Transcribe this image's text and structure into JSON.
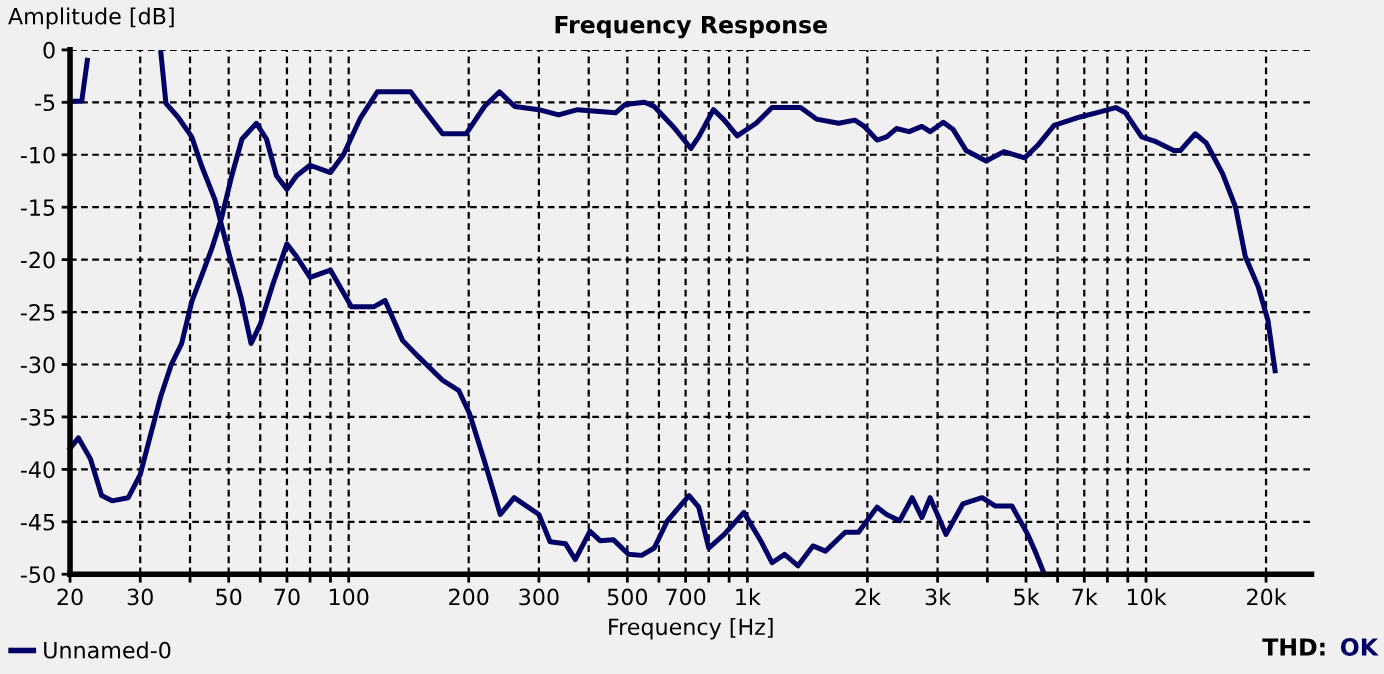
{
  "chart_data": {
    "type": "line",
    "title": "Frequency Response",
    "xlabel": "Frequency [Hz]",
    "ylabel": "Amplitude [dB]",
    "log": "x",
    "grid": true,
    "legend": "bottom left",
    "line_style": "solid",
    "marker": "none",
    "xlim": [
      20,
      26000
    ],
    "ylim": [
      -50,
      0
    ],
    "xticks": [
      20,
      30,
      {
        "value": 40,
        "label": null
      },
      50,
      {
        "value": 60,
        "label": null
      },
      70,
      {
        "value": 80,
        "label": null
      },
      {
        "value": 90,
        "label": null
      },
      100,
      200,
      300,
      {
        "value": 400,
        "label": null
      },
      500,
      {
        "value": 600,
        "label": null
      },
      700,
      {
        "value": 800,
        "label": null
      },
      {
        "value": 900,
        "label": null
      },
      {
        "value": 1000,
        "label": "1k"
      },
      {
        "value": 2000,
        "label": "2k"
      },
      {
        "value": 3000,
        "label": "3k"
      },
      {
        "value": 4000,
        "label": null
      },
      {
        "value": 5000,
        "label": "5k"
      },
      {
        "value": 6000,
        "label": null
      },
      {
        "value": 7000,
        "label": "7k"
      },
      {
        "value": 8000,
        "label": null
      },
      {
        "value": 9000,
        "label": null
      },
      {
        "value": 10000,
        "label": "10k"
      },
      {
        "value": 20000,
        "label": "20k"
      }
    ],
    "yticks": [
      0,
      -5,
      -10,
      -15,
      -20,
      -25,
      -30,
      -35,
      -40,
      -45,
      -50
    ],
    "annotations": [
      "THD:",
      "OK"
    ],
    "series": [
      {
        "name": "Unnamed-0",
        "color": "#000066",
        "x": [
          20,
          21,
          22.5,
          24,
          25.5,
          28,
          30,
          31.7,
          33.8,
          35.9,
          38.1,
          40.4,
          42.8,
          45.3,
          48,
          50.9,
          54,
          58.7,
          62.2,
          65.9,
          70,
          74,
          80,
          90,
          97,
          107,
          118,
          143,
          153,
          172,
          197,
          219,
          239,
          261,
          300,
          336,
          375,
          403,
          467,
          494,
          552,
          584,
          651,
          722,
          755,
          822,
          875,
          943,
          1052,
          1153,
          1360,
          1490,
          1695,
          1860,
          1965,
          2115,
          2235,
          2365,
          2545,
          2740,
          2873,
          3100,
          3283,
          3540,
          3970,
          4400,
          4960,
          5350,
          5880,
          6830,
          7500,
          8390,
          8880,
          9750,
          10500,
          11740,
          12190,
          13290,
          14170,
          15560,
          16770,
          17740,
          19120,
          20220,
          21070
        ],
        "values": [
          -38,
          -37,
          -39,
          -42.5,
          -43,
          -42.7,
          -40.5,
          -37,
          -33,
          -30,
          -28,
          -24,
          -21.5,
          -19,
          -16,
          -12,
          -8.5,
          -7,
          -8.5,
          -12,
          -13.3,
          -12,
          -11,
          -11.7,
          -10,
          -6.5,
          -4,
          -4,
          -5.5,
          -8,
          -8,
          -5.4,
          -4,
          -5.4,
          -5.7,
          -6.2,
          -5.7,
          -5.8,
          -6,
          -5.2,
          -5,
          -5.4,
          -7.3,
          -9.4,
          -8.3,
          -5.7,
          -6.7,
          -8.2,
          -7,
          -5.5,
          -5.5,
          -6.6,
          -7,
          -6.7,
          -7.3,
          -8.6,
          -8.3,
          -7.5,
          -7.8,
          -7.3,
          -7.8,
          -6.9,
          -7.6,
          -9.6,
          -10.6,
          -9.7,
          -10.3,
          -9.1,
          -7.2,
          -6.4,
          -6,
          -5.5,
          -6,
          -8.3,
          -8.7,
          -9.6,
          -9.6,
          -8,
          -8.9,
          -11.8,
          -15,
          -19.7,
          -22.6,
          -25.8,
          -30.6
        ]
      },
      {
        "color": "#000066",
        "x": [
          33.8,
          34.8,
          37.3,
          40.4,
          42.8,
          46.2,
          49.8,
          53.7,
          56.9,
          60.1,
          64.6,
          70,
          74,
          80,
          90,
          101.6,
          115.5,
          123.4,
          136.5,
          150,
          172,
          189,
          201,
          219,
          232,
          240,
          260,
          300,
          320,
          350,
          370,
          403,
          427,
          461,
          503,
          543,
          584,
          630,
          714,
          755,
          800,
          875,
          980,
          1080,
          1153,
          1240,
          1340,
          1460,
          1570,
          1760,
          1900,
          2115,
          2235,
          2410,
          2590,
          2740,
          2873,
          3150,
          3470,
          3880,
          4190,
          4610,
          5050,
          5310,
          5560
        ],
        "values": [
          -0.3,
          -5.1,
          -6.4,
          -8.3,
          -11.1,
          -14.3,
          -19.1,
          -23.6,
          -28,
          -26.1,
          -22.3,
          -18.5,
          -19.7,
          -21.7,
          -21,
          -24.5,
          -24.5,
          -23.9,
          -27.7,
          -29.3,
          -31.5,
          -32.5,
          -34.7,
          -39.2,
          -42.4,
          -44.3,
          -42.7,
          -44.3,
          -46.9,
          -47.1,
          -48.6,
          -45.9,
          -46.8,
          -46.7,
          -48.1,
          -48.2,
          -47.5,
          -44.9,
          -42.5,
          -43.6,
          -47.5,
          -46.2,
          -44.1,
          -46.8,
          -48.9,
          -48.1,
          -49.2,
          -47.3,
          -47.8,
          -46,
          -46,
          -43.6,
          -44.3,
          -44.9,
          -42.7,
          -44.6,
          -42.7,
          -46.2,
          -43.3,
          -42.7,
          -43.5,
          -43.5,
          -46.2,
          -48.1,
          -50
        ]
      },
      {
        "color": "#000066",
        "x": [
          20,
          21.4,
          22.1
        ],
        "values": [
          -4.9,
          -4.9,
          -1
        ]
      }
    ]
  }
}
